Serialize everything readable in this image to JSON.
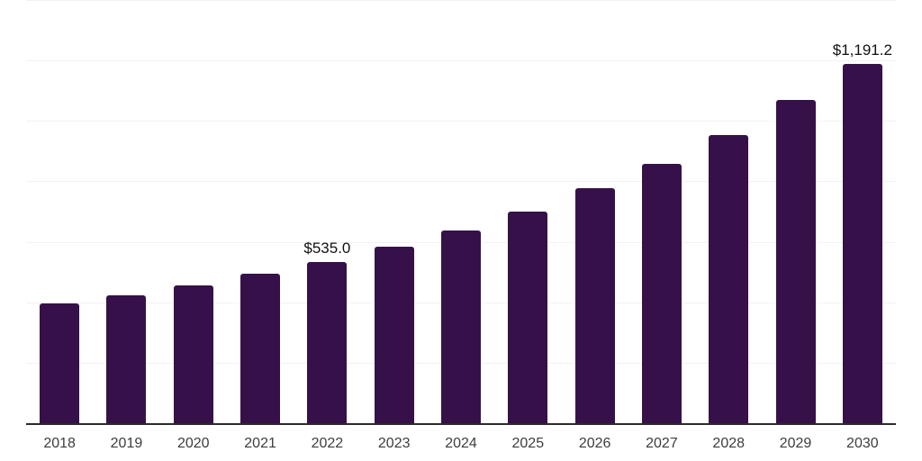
{
  "chart": {
    "colors": {
      "bar": "#361149",
      "grid": "#f2f2f2",
      "axis": "#2a2a2a",
      "year_label": "#3d3d3d",
      "data_label": "#111111",
      "background": "#ffffff"
    }
  },
  "chart_data": {
    "type": "bar",
    "categories": [
      "2018",
      "2019",
      "2020",
      "2021",
      "2022",
      "2023",
      "2024",
      "2025",
      "2026",
      "2027",
      "2028",
      "2029",
      "2030"
    ],
    "values": [
      400,
      426,
      460,
      497,
      535.0,
      586,
      640,
      704,
      780,
      862,
      957,
      1071,
      1191.2
    ],
    "data_labels": [
      null,
      null,
      null,
      null,
      "$535.0",
      null,
      null,
      null,
      null,
      null,
      null,
      null,
      "$1,191.2"
    ],
    "title": "",
    "xlabel": "",
    "ylabel": "",
    "ylim": [
      0,
      1400
    ],
    "gridline_step": 200,
    "grid": "on",
    "legend": "none"
  }
}
